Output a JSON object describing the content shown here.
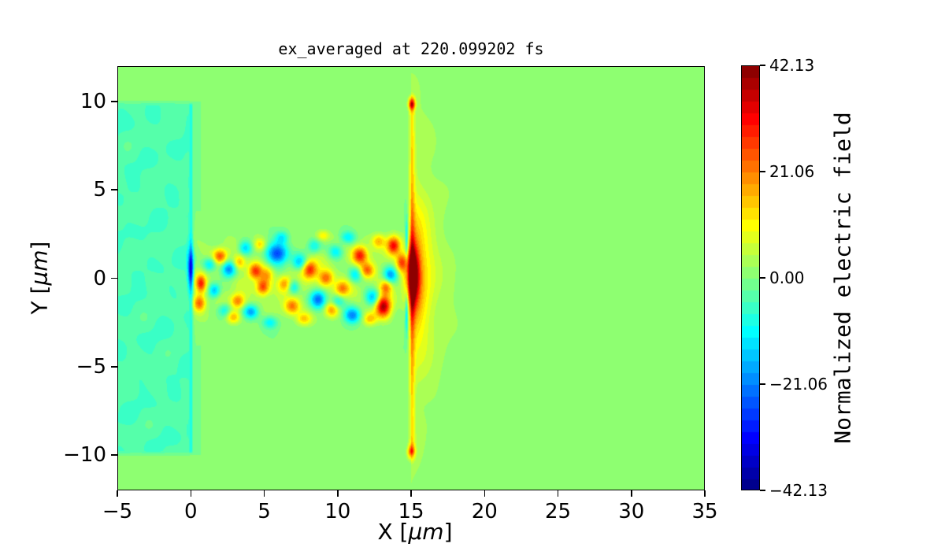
{
  "title": "ex_averaged at 220.099202 fs",
  "x_axis": {
    "label_prefix": "X [",
    "label_unit": "μm",
    "label_suffix": "]",
    "ticks": [
      {
        "v": -5,
        "label": "−5"
      },
      {
        "v": 0,
        "label": "0"
      },
      {
        "v": 5,
        "label": "5"
      },
      {
        "v": 10,
        "label": "10"
      },
      {
        "v": 15,
        "label": "15"
      },
      {
        "v": 20,
        "label": "20"
      },
      {
        "v": 25,
        "label": "25"
      },
      {
        "v": 30,
        "label": "30"
      },
      {
        "v": 35,
        "label": "35"
      }
    ]
  },
  "y_axis": {
    "label_prefix": "Y [",
    "label_unit": "μm",
    "label_suffix": "]",
    "ticks": [
      {
        "v": 10,
        "label": "10"
      },
      {
        "v": 5,
        "label": "5"
      },
      {
        "v": 0,
        "label": "0"
      },
      {
        "v": -5,
        "label": "−5"
      },
      {
        "v": -10,
        "label": "−10"
      }
    ]
  },
  "colorbar": {
    "label": "Normalized electric field",
    "ticks": [
      {
        "v": 42.13,
        "label": "42.13"
      },
      {
        "v": 21.06,
        "label": "21.06"
      },
      {
        "v": 0,
        "label": "0.00"
      },
      {
        "v": -21.06,
        "label": "−21.06"
      },
      {
        "v": -42.13,
        "label": "−42.13"
      }
    ]
  },
  "colors": {
    "background": "#ffffff",
    "axes": "#000000",
    "text": "#000000"
  },
  "chart_data": {
    "type": "heatmap",
    "title": "ex_averaged at 220.099202 fs",
    "xlabel": "X [μm]",
    "ylabel": "Y [μm]",
    "colorbar_label": "Normalized electric field",
    "xlim": [
      -5,
      35
    ],
    "ylim": [
      -12,
      12
    ],
    "vmin": -42.13,
    "vmax": 42.13,
    "levels": 36,
    "colormap": "jet",
    "grid": false,
    "x_tick_values": [
      -5,
      0,
      5,
      10,
      15,
      20,
      25,
      30,
      35
    ],
    "y_tick_values": [
      10,
      5,
      0,
      -5,
      -10
    ],
    "colorbar_tick_values": [
      42.13,
      21.06,
      0.0,
      -21.06,
      -42.13
    ],
    "features": {
      "background_value": 0.0,
      "left_plasma_region": {
        "x": [
          -5,
          -0.05
        ],
        "y": [
          -10,
          10
        ],
        "value": -4.2,
        "streak_amp": 1.6
      },
      "left_boundary_line": {
        "x": 0.0,
        "y": [
          -10,
          10
        ],
        "amp": -9,
        "sigma_x": 0.14
      },
      "left_boundary_spot": {
        "x": 0.0,
        "y": 0.6,
        "amp": -26,
        "sigma": [
          0.2,
          1.1
        ]
      },
      "channel": {
        "x": [
          0,
          14.85
        ],
        "y": [
          -2.7,
          2.7
        ],
        "base_value": 3.2,
        "noise_amp": 2.2
      },
      "right_wall_line": {
        "x": 15.05,
        "y": [
          -10,
          10
        ],
        "amp": 13,
        "sigma_x": 0.2
      },
      "right_wall_core": {
        "x": 15.1,
        "y": 0.2,
        "amp": 39,
        "sigma": [
          0.45,
          1.6
        ]
      },
      "right_wall_glow": {
        "x": 15.2,
        "y": 0.0,
        "amp": 14,
        "sigma": [
          1.1,
          3.8
        ]
      },
      "wall_top_spot": {
        "x": 15.05,
        "y": 9.9,
        "amp": 30,
        "sigma": [
          0.22,
          0.35
        ]
      },
      "wall_bottom_spot": {
        "x": 15.0,
        "y": -9.85,
        "amp": 20,
        "sigma": [
          0.25,
          0.4
        ]
      },
      "pre_wall_notch_up": {
        "x": 14.7,
        "y": 2.2,
        "amp": -14,
        "sigma": [
          0.1,
          1.2
        ]
      },
      "pre_wall_notch_down": {
        "x": 14.7,
        "y": -2.0,
        "amp": -14,
        "sigma": [
          0.1,
          1.2
        ]
      },
      "fan": {
        "x0": 15,
        "reach": 6.6,
        "y_half": 11.6,
        "value": 6.0,
        "falloff": 1.6,
        "streak_amp": 0.9
      }
    },
    "speckle_blobs": [
      [
        0.7,
        -0.3,
        26,
        0.35,
        0.5
      ],
      [
        0.6,
        -1.4,
        22,
        0.4,
        0.45
      ],
      [
        1.3,
        0.8,
        -16,
        0.45,
        0.4
      ],
      [
        1.6,
        -0.7,
        -18,
        0.4,
        0.4
      ],
      [
        2.0,
        1.25,
        22,
        0.45,
        0.4
      ],
      [
        2.3,
        -1.8,
        -13,
        0.45,
        0.4
      ],
      [
        2.6,
        0.5,
        -22,
        0.5,
        0.45
      ],
      [
        2.9,
        -2.2,
        15,
        0.45,
        0.35
      ],
      [
        3.2,
        -1.3,
        20,
        0.45,
        0.4
      ],
      [
        3.3,
        0.9,
        14,
        0.4,
        0.4
      ],
      [
        3.7,
        1.7,
        -15,
        0.45,
        0.4
      ],
      [
        4.1,
        -1.9,
        -20,
        0.5,
        0.4
      ],
      [
        4.4,
        0.4,
        24,
        0.45,
        0.45
      ],
      [
        4.7,
        1.9,
        12,
        0.4,
        0.35
      ],
      [
        4.9,
        -0.5,
        25,
        0.45,
        0.45
      ],
      [
        5.2,
        0.2,
        12,
        0.4,
        0.4
      ],
      [
        5.4,
        -2.5,
        -12,
        0.5,
        0.35
      ],
      [
        5.9,
        1.4,
        -30,
        0.75,
        0.6
      ],
      [
        6.2,
        2.3,
        -12,
        0.45,
        0.35
      ],
      [
        6.4,
        -0.3,
        17,
        0.45,
        0.45
      ],
      [
        6.9,
        -1.6,
        20,
        0.5,
        0.45
      ],
      [
        7.0,
        -0.5,
        -14,
        0.4,
        0.4
      ],
      [
        7.4,
        0.9,
        -17,
        0.5,
        0.45
      ],
      [
        7.7,
        -2.3,
        13,
        0.5,
        0.35
      ],
      [
        8.1,
        0.5,
        27,
        0.5,
        0.5
      ],
      [
        8.4,
        1.8,
        -12,
        0.45,
        0.4
      ],
      [
        8.7,
        -1.2,
        -25,
        0.55,
        0.5
      ],
      [
        9.2,
        0.0,
        21,
        0.5,
        0.45
      ],
      [
        9.0,
        2.4,
        11,
        0.45,
        0.3
      ],
      [
        9.6,
        -1.8,
        15,
        0.45,
        0.4
      ],
      [
        9.9,
        1.5,
        -14,
        0.5,
        0.4
      ],
      [
        10.0,
        -1.3,
        -13,
        0.45,
        0.4
      ],
      [
        10.3,
        -0.6,
        19,
        0.5,
        0.45
      ],
      [
        10.7,
        2.3,
        -13,
        0.5,
        0.35
      ],
      [
        11.0,
        -2.1,
        -22,
        0.55,
        0.45
      ],
      [
        11.2,
        0.2,
        -15,
        0.45,
        0.45
      ],
      [
        11.5,
        1.3,
        29,
        0.5,
        0.5
      ],
      [
        12.0,
        0.45,
        19,
        0.45,
        0.4
      ],
      [
        12.2,
        -2.3,
        14,
        0.45,
        0.35
      ],
      [
        12.4,
        -1.1,
        -17,
        0.5,
        0.45
      ],
      [
        12.8,
        2.1,
        15,
        0.45,
        0.4
      ],
      [
        13.1,
        -1.6,
        36,
        0.5,
        0.6
      ],
      [
        13.3,
        -0.5,
        18,
        0.4,
        0.4
      ],
      [
        13.6,
        0.2,
        -19,
        0.45,
        0.45
      ],
      [
        13.8,
        1.85,
        29,
        0.45,
        0.5
      ],
      [
        14.35,
        0.9,
        22,
        0.35,
        0.5
      ]
    ]
  }
}
